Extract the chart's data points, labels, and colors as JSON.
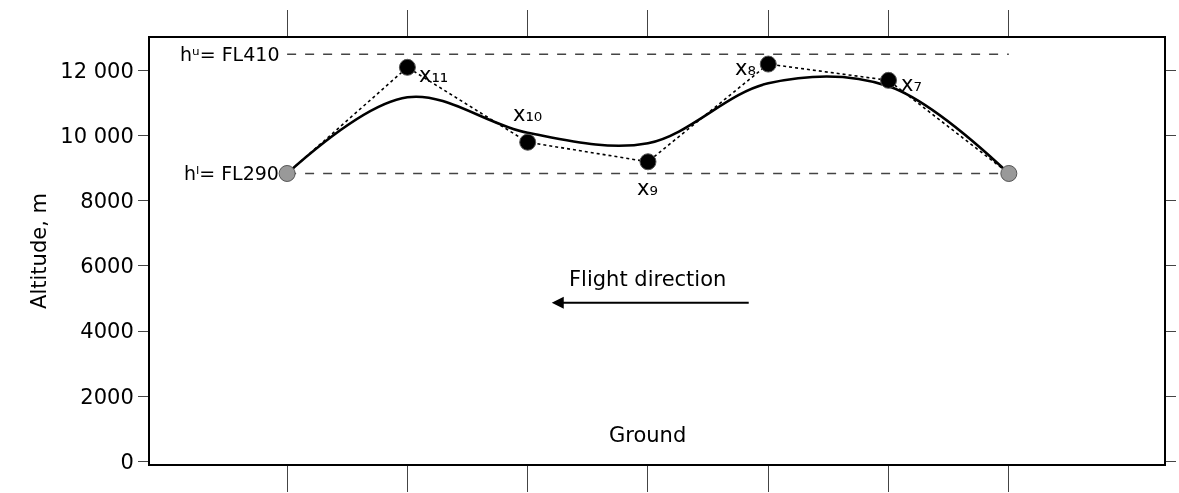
{
  "chart_data": {
    "type": "line",
    "ylabel": "Altitude, m",
    "categories": [
      null,
      null,
      null,
      null,
      null,
      null,
      null
    ],
    "ylim": [
      -80,
      13000
    ],
    "yticks": [
      0,
      2000,
      4000,
      6000,
      8000,
      {
        "value": 10000,
        "label": "10 000"
      },
      {
        "value": 12000,
        "label": "12 000"
      }
    ],
    "tick_labels": "y",
    "grid": false,
    "series": [
      {
        "color": "#000000",
        "line_style": "solid",
        "marker": "none",
        "values": [
          8840,
          11180,
          10090,
          9770,
          11610,
          11520,
          8840
        ]
      },
      {
        "color": "#000000",
        "line_style": "dotted",
        "marker": "circle",
        "values": [
          8840,
          12100,
          9800,
          9200,
          12200,
          11700,
          8840
        ],
        "colors": [
          "#999999",
          "#000000",
          "#000000",
          "#000000",
          "#000000",
          "#000000",
          "#999999"
        ]
      }
    ],
    "ref_lines": [
      {
        "axis": "y",
        "value": 12500,
        "label": "hᵘ= FL410",
        "line_style": "dashed",
        "color": "#444444"
      },
      {
        "axis": "y",
        "value": 8840,
        "label": "hˡ= FL290",
        "line_style": "dashed",
        "color": "#444444"
      }
    ],
    "annotations": [
      "x₁₁",
      "x₁₀",
      "x₉",
      "x₈",
      "x₇",
      "Flight direction",
      "Ground"
    ]
  }
}
